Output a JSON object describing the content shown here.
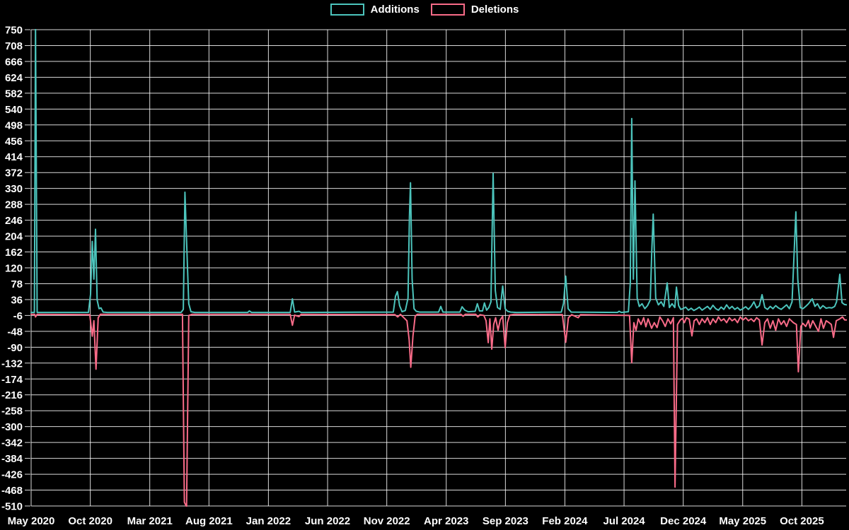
{
  "legend": {
    "items": [
      {
        "label": "Additions",
        "color": "#4cc4bc"
      },
      {
        "label": "Deletions",
        "color": "#f96b88"
      }
    ]
  },
  "chart_data": {
    "type": "line",
    "title": "",
    "xlabel": "",
    "ylabel": "",
    "background_color": "#000000",
    "grid": true,
    "grid_color": "#ffffff",
    "text_color": "#ffffff",
    "legend_position": "top-center",
    "y_axis": {
      "min": -510,
      "max": 750,
      "tick_step": 42,
      "ticks": [
        750,
        708,
        666,
        624,
        582,
        540,
        498,
        456,
        414,
        372,
        330,
        288,
        246,
        204,
        162,
        120,
        78,
        36,
        -6,
        -48,
        -90,
        -132,
        -174,
        -216,
        -258,
        -300,
        -342,
        -384,
        -426,
        -468,
        -510
      ]
    },
    "x_axis": {
      "unit": "weeks since May 2020 (weekly samples)",
      "ticks": [
        {
          "label": "May 2020",
          "week": 0
        },
        {
          "label": "Oct 2020",
          "week": 21.7
        },
        {
          "label": "Mar 2021",
          "week": 43.5
        },
        {
          "label": "Aug 2021",
          "week": 65.2
        },
        {
          "label": "Jan 2022",
          "week": 87.0
        },
        {
          "label": "Jun 2022",
          "week": 108.7
        },
        {
          "label": "Nov 2022",
          "week": 130.4
        },
        {
          "label": "Apr 2023",
          "week": 152.2
        },
        {
          "label": "Sep 2023",
          "week": 173.9
        },
        {
          "label": "Feb 2024",
          "week": 195.7
        },
        {
          "label": "Jul 2024",
          "week": 217.4
        },
        {
          "label": "Dec 2024",
          "week": 239.1
        },
        {
          "label": "May 2025",
          "week": 260.9
        },
        {
          "label": "Oct 2025",
          "week": 282.6
        }
      ]
    },
    "series": [
      {
        "name": "Additions",
        "color": "#4cc4bc",
        "points": [
          [
            0,
            2
          ],
          [
            1.2,
            2
          ],
          [
            1.6,
            760
          ],
          [
            2.2,
            2
          ],
          [
            21,
            2
          ],
          [
            21.8,
            50
          ],
          [
            22.4,
            190
          ],
          [
            23,
            90
          ],
          [
            23.6,
            222
          ],
          [
            24.2,
            35
          ],
          [
            24.9,
            12
          ],
          [
            25.6,
            14
          ],
          [
            26.4,
            3
          ],
          [
            28,
            2
          ],
          [
            55,
            2
          ],
          [
            55.8,
            10
          ],
          [
            56.4,
            320
          ],
          [
            57.1,
            170
          ],
          [
            57.8,
            25
          ],
          [
            58.6,
            4
          ],
          [
            60,
            2
          ],
          [
            79.4,
            2
          ],
          [
            80,
            6
          ],
          [
            80.8,
            2
          ],
          [
            95,
            2
          ],
          [
            95.8,
            38
          ],
          [
            96.6,
            3
          ],
          [
            98.2,
            5
          ],
          [
            99,
            2
          ],
          [
            132.8,
            3
          ],
          [
            133.6,
            45
          ],
          [
            134.3,
            57
          ],
          [
            135.1,
            20
          ],
          [
            136,
            4
          ],
          [
            137.2,
            7
          ],
          [
            138.2,
            40
          ],
          [
            138.7,
            255
          ],
          [
            139.1,
            345
          ],
          [
            139.7,
            90
          ],
          [
            140.4,
            12
          ],
          [
            141.2,
            5
          ],
          [
            142.5,
            3
          ],
          [
            149.4,
            3
          ],
          [
            150.2,
            18
          ],
          [
            151,
            3
          ],
          [
            157.2,
            3
          ],
          [
            158,
            17
          ],
          [
            159,
            8
          ],
          [
            160.2,
            4
          ],
          [
            162.8,
            5
          ],
          [
            163.6,
            25
          ],
          [
            164.4,
            6
          ],
          [
            165.5,
            6
          ],
          [
            166.2,
            27
          ],
          [
            167,
            8
          ],
          [
            167.8,
            15
          ],
          [
            168.6,
            30
          ],
          [
            169.4,
            370
          ],
          [
            170.2,
            60
          ],
          [
            171,
            15
          ],
          [
            172,
            10
          ],
          [
            172.9,
            72
          ],
          [
            173.8,
            12
          ],
          [
            174.7,
            5
          ],
          [
            175.8,
            3
          ],
          [
            178,
            2
          ],
          [
            194.4,
            3
          ],
          [
            195.2,
            26
          ],
          [
            196,
            98
          ],
          [
            196.9,
            12
          ],
          [
            198,
            3
          ],
          [
            215,
            2
          ],
          [
            215.6,
            5
          ],
          [
            216.4,
            2
          ],
          [
            219,
            4
          ],
          [
            219.7,
            80
          ],
          [
            220.2,
            515
          ],
          [
            220.8,
            90
          ],
          [
            221.4,
            350
          ],
          [
            222.2,
            40
          ],
          [
            223,
            18
          ],
          [
            224,
            25
          ],
          [
            225,
            12
          ],
          [
            226,
            20
          ],
          [
            227,
            35
          ],
          [
            227.6,
            172
          ],
          [
            228.1,
            262
          ],
          [
            229,
            40
          ],
          [
            230,
            22
          ],
          [
            231,
            30
          ],
          [
            232,
            18
          ],
          [
            233.2,
            80
          ],
          [
            234,
            15
          ],
          [
            235,
            25
          ],
          [
            236,
            15
          ],
          [
            236.6,
            69
          ],
          [
            237.4,
            20
          ],
          [
            238.2,
            10
          ],
          [
            239,
            12
          ],
          [
            240,
            16
          ],
          [
            241,
            8
          ],
          [
            242,
            13
          ],
          [
            243,
            7
          ],
          [
            244,
            11
          ],
          [
            245,
            16
          ],
          [
            246,
            8
          ],
          [
            247,
            13
          ],
          [
            248,
            18
          ],
          [
            249,
            10
          ],
          [
            250,
            21
          ],
          [
            251,
            12
          ],
          [
            252,
            8
          ],
          [
            253,
            16
          ],
          [
            254,
            10
          ],
          [
            255,
            22
          ],
          [
            256,
            12
          ],
          [
            257,
            18
          ],
          [
            258,
            10
          ],
          [
            259,
            15
          ],
          [
            260,
            8
          ],
          [
            261,
            12
          ],
          [
            262,
            17
          ],
          [
            263,
            10
          ],
          [
            264,
            18
          ],
          [
            265,
            30
          ],
          [
            266,
            14
          ],
          [
            267,
            20
          ],
          [
            268,
            49
          ],
          [
            269,
            15
          ],
          [
            270,
            10
          ],
          [
            271,
            18
          ],
          [
            272,
            12
          ],
          [
            273,
            20
          ],
          [
            274,
            14
          ],
          [
            275,
            10
          ],
          [
            276,
            16
          ],
          [
            277,
            22
          ],
          [
            278,
            12
          ],
          [
            279,
            30
          ],
          [
            280.4,
            268
          ],
          [
            281.1,
            90
          ],
          [
            282,
            15
          ],
          [
            283,
            12
          ],
          [
            284,
            18
          ],
          [
            285,
            25
          ],
          [
            286.4,
            38
          ],
          [
            287.4,
            18
          ],
          [
            288.3,
            25
          ],
          [
            289.3,
            12
          ],
          [
            290.3,
            20
          ],
          [
            291.5,
            13
          ],
          [
            292.6,
            15
          ],
          [
            293.6,
            14
          ],
          [
            294.6,
            18
          ],
          [
            295.3,
            30
          ],
          [
            296.5,
            103
          ],
          [
            297.3,
            28
          ],
          [
            298.2,
            23
          ],
          [
            299,
            22
          ]
        ]
      },
      {
        "name": "Deletions",
        "color": "#f96b88",
        "points": [
          [
            0,
            -3
          ],
          [
            1.3,
            -3
          ],
          [
            1.6,
            -10
          ],
          [
            2.2,
            -3
          ],
          [
            21.5,
            -4
          ],
          [
            22.4,
            -61
          ],
          [
            23,
            -20
          ],
          [
            23.8,
            -148
          ],
          [
            24.6,
            -12
          ],
          [
            25.4,
            -3
          ],
          [
            55.5,
            -3
          ],
          [
            56.2,
            -500
          ],
          [
            57,
            -512
          ],
          [
            57.8,
            -6
          ],
          [
            59,
            -3
          ],
          [
            95,
            -3
          ],
          [
            95.8,
            -32
          ],
          [
            96.6,
            -5
          ],
          [
            98.2,
            -9
          ],
          [
            99,
            -3
          ],
          [
            133.4,
            -4
          ],
          [
            134.4,
            -10
          ],
          [
            135.4,
            -3
          ],
          [
            137.8,
            -20
          ],
          [
            138.6,
            -70
          ],
          [
            139.2,
            -143
          ],
          [
            140,
            -60
          ],
          [
            140.8,
            -8
          ],
          [
            141.6,
            -3
          ],
          [
            157.6,
            -3
          ],
          [
            158.4,
            -8
          ],
          [
            159.2,
            -3
          ],
          [
            163,
            -3
          ],
          [
            163.8,
            -10
          ],
          [
            164.6,
            -4
          ],
          [
            166,
            -6
          ],
          [
            166.8,
            -20
          ],
          [
            167.6,
            -78
          ],
          [
            168.2,
            -15
          ],
          [
            168.9,
            -95
          ],
          [
            169.6,
            -30
          ],
          [
            170.3,
            -12
          ],
          [
            171.2,
            -45
          ],
          [
            172,
            -18
          ],
          [
            172.9,
            -8
          ],
          [
            173.8,
            -91
          ],
          [
            174.6,
            -25
          ],
          [
            175.5,
            -5
          ],
          [
            177,
            -3
          ],
          [
            194.8,
            -4
          ],
          [
            196,
            -77
          ],
          [
            197,
            -12
          ],
          [
            198.2,
            -4
          ],
          [
            200.6,
            -12
          ],
          [
            201.4,
            -4
          ],
          [
            219.4,
            -6
          ],
          [
            220.2,
            -131
          ],
          [
            221,
            -25
          ],
          [
            221.8,
            -45
          ],
          [
            222.6,
            -15
          ],
          [
            223.6,
            -30
          ],
          [
            224.6,
            -12
          ],
          [
            225.4,
            -36
          ],
          [
            226.2,
            -15
          ],
          [
            227.5,
            -40
          ],
          [
            228.5,
            -25
          ],
          [
            229.5,
            -38
          ],
          [
            230.5,
            -10
          ],
          [
            231.5,
            -20
          ],
          [
            232.5,
            -35
          ],
          [
            233.5,
            -15
          ],
          [
            234.5,
            -28
          ],
          [
            235.5,
            -12
          ],
          [
            236.1,
            -460
          ],
          [
            237,
            -30
          ],
          [
            238,
            -18
          ],
          [
            238.8,
            -14
          ],
          [
            239.5,
            -25
          ],
          [
            240.3,
            -12
          ],
          [
            241.3,
            -16
          ],
          [
            242.3,
            -60
          ],
          [
            243.1,
            -20
          ],
          [
            244,
            -15
          ],
          [
            245,
            -30
          ],
          [
            246,
            -15
          ],
          [
            247,
            -25
          ],
          [
            248,
            -12
          ],
          [
            249,
            -30
          ],
          [
            250,
            -15
          ],
          [
            251,
            -25
          ],
          [
            252,
            -10
          ],
          [
            253,
            -20
          ],
          [
            254,
            -15
          ],
          [
            255,
            -25
          ],
          [
            256,
            -12
          ],
          [
            257,
            -20
          ],
          [
            258,
            -15
          ],
          [
            259,
            -25
          ],
          [
            260,
            -10
          ],
          [
            261,
            -18
          ],
          [
            262,
            -12
          ],
          [
            263,
            -20
          ],
          [
            264,
            -15
          ],
          [
            265,
            -22
          ],
          [
            266,
            -12
          ],
          [
            267,
            -18
          ],
          [
            268,
            -84
          ],
          [
            269,
            -25
          ],
          [
            270,
            -15
          ],
          [
            271,
            -40
          ],
          [
            272,
            -20
          ],
          [
            273,
            -45
          ],
          [
            274,
            -15
          ],
          [
            275,
            -30
          ],
          [
            276,
            -20
          ],
          [
            277,
            -35
          ],
          [
            278,
            -15
          ],
          [
            279.5,
            -25
          ],
          [
            280.6,
            -30
          ],
          [
            281.3,
            -155
          ],
          [
            282.2,
            -35
          ],
          [
            283,
            -27
          ],
          [
            284,
            -35
          ],
          [
            285,
            -19
          ],
          [
            285.6,
            -39
          ],
          [
            286.6,
            -20
          ],
          [
            287.7,
            -35
          ],
          [
            288.7,
            -48
          ],
          [
            289.6,
            -15
          ],
          [
            290.5,
            -40
          ],
          [
            291.5,
            -20
          ],
          [
            292.6,
            -25
          ],
          [
            293.4,
            -30
          ],
          [
            294.2,
            -64
          ],
          [
            295.2,
            -20
          ],
          [
            296.5,
            -15
          ],
          [
            297.5,
            -10
          ],
          [
            298.3,
            -18
          ],
          [
            299,
            -18
          ]
        ]
      }
    ]
  }
}
